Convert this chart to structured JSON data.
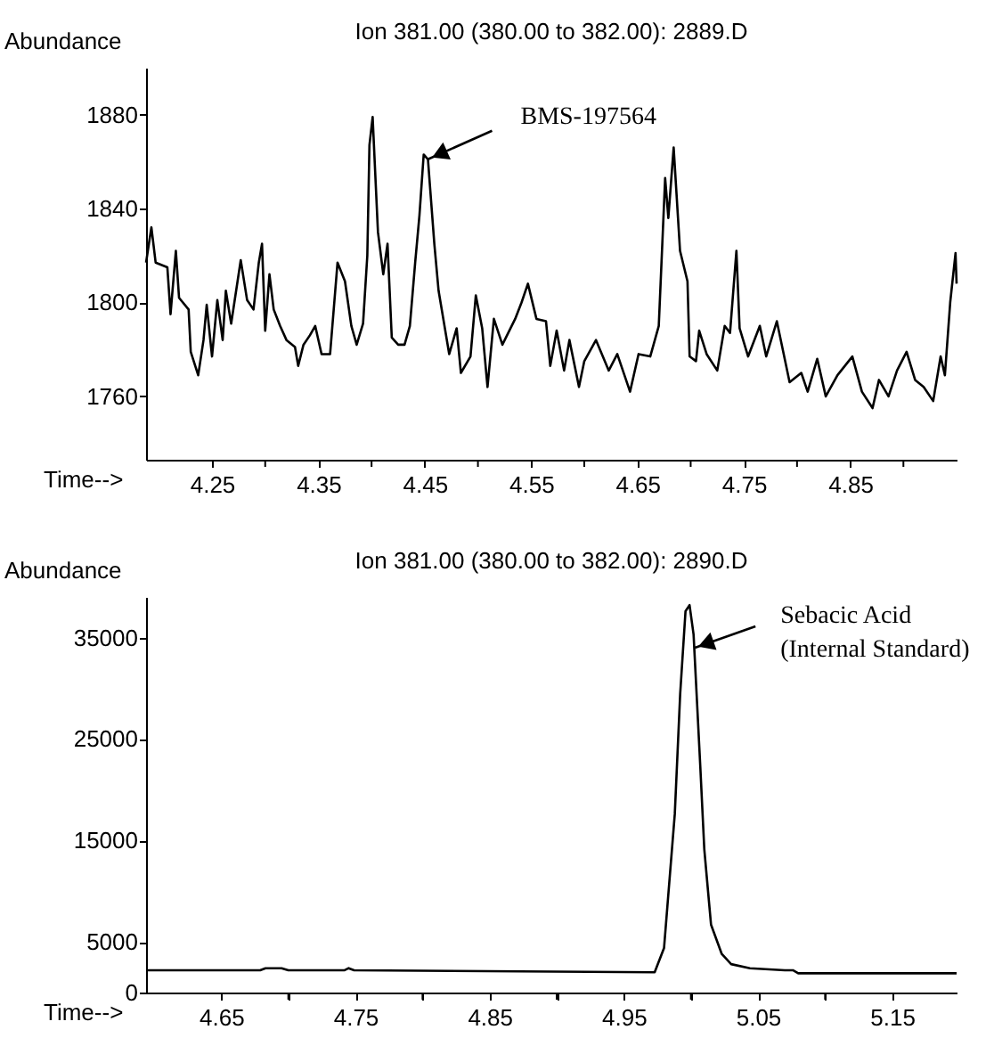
{
  "chart_data": [
    {
      "type": "line",
      "title": "Ion 381.00 (380.00 to 382.00): 2889.D",
      "xlabel": "Time-->",
      "ylabel": "Abundance",
      "xlim": [
        4.188,
        4.95
      ],
      "ylim": [
        1733,
        1900
      ],
      "xticks": [
        4.25,
        {
          "value": 4.3,
          "label": null
        },
        4.35,
        {
          "value": 4.4,
          "label": null
        },
        4.45,
        {
          "value": 4.5,
          "label": null
        },
        4.55,
        {
          "value": 4.6,
          "label": null
        },
        4.65,
        {
          "value": 4.7,
          "label": null
        },
        4.75,
        {
          "value": 4.8,
          "label": null
        },
        4.85,
        {
          "value": 4.9,
          "label": null
        }
      ],
      "yticks": [
        1760,
        1800,
        1840,
        1880
      ],
      "x": [
        4.188,
        4.193,
        4.197,
        4.208,
        4.211,
        4.216,
        4.219,
        4.228,
        4.23,
        4.237,
        4.242,
        4.245,
        4.25,
        4.255,
        4.26,
        4.263,
        4.268,
        4.277,
        4.283,
        4.289,
        4.294,
        4.297,
        4.3,
        4.304,
        4.308,
        4.314,
        4.32,
        4.328,
        4.331,
        4.336,
        4.342,
        4.347,
        4.353,
        4.361,
        4.368,
        4.375,
        4.381,
        4.386,
        4.392,
        4.396,
        4.398,
        4.401,
        4.406,
        4.411,
        4.415,
        4.419,
        4.425,
        4.431,
        4.436,
        4.441,
        4.445,
        4.449,
        4.453,
        4.459,
        4.463,
        4.473,
        4.48,
        4.484,
        4.493,
        4.498,
        4.504,
        4.509,
        4.515,
        4.523,
        4.535,
        4.541,
        4.547,
        4.555,
        4.564,
        4.568,
        4.574,
        4.581,
        4.586,
        4.595,
        4.6,
        4.611,
        4.623,
        4.631,
        4.643,
        4.651,
        4.662,
        4.67,
        4.676,
        4.679,
        4.684,
        4.69,
        4.697,
        4.699,
        4.705,
        4.708,
        4.715,
        4.725,
        4.732,
        4.737,
        4.743,
        4.746,
        4.754,
        4.765,
        4.771,
        4.781,
        4.793,
        4.804,
        4.81,
        4.819,
        4.827,
        4.838,
        4.852,
        4.861,
        4.871,
        4.877,
        4.886,
        4.894,
        4.903,
        4.911,
        4.919,
        4.928,
        4.935,
        4.939,
        4.944,
        4.949,
        4.95
      ],
      "series": [
        {
          "color": "#000000",
          "values": [
            1817,
            1832,
            1817,
            1815,
            1795,
            1822,
            1802,
            1797,
            1779,
            1769,
            1784,
            1799,
            1777,
            1801,
            1784,
            1805,
            1791,
            1818,
            1801,
            1797,
            1817,
            1825,
            1788,
            1812,
            1797,
            1790,
            1784,
            1781,
            1773,
            1782,
            1786,
            1790,
            1778,
            1778,
            1817,
            1809,
            1790,
            1782,
            1791,
            1820,
            1867,
            1879,
            1830,
            1812,
            1825,
            1785,
            1782,
            1782,
            1790,
            1817,
            1837,
            1863,
            1861,
            1825,
            1805,
            1778,
            1789,
            1770,
            1777,
            1803,
            1789,
            1764,
            1793,
            1782,
            1793,
            1800,
            1808,
            1793,
            1792,
            1773,
            1788,
            1771,
            1784,
            1764,
            1775,
            1784,
            1771,
            1778,
            1762,
            1778,
            1777,
            1790,
            1853,
            1836,
            1866,
            1822,
            1809,
            1777,
            1775,
            1788,
            1778,
            1771,
            1790,
            1787,
            1822,
            1789,
            1777,
            1790,
            1777,
            1792,
            1766,
            1770,
            1762,
            1776,
            1760,
            1769,
            1777,
            1762,
            1755,
            1767,
            1760,
            1771,
            1779,
            1767,
            1764,
            1758,
            1777,
            1769,
            1800,
            1821,
            1808
          ]
        }
      ],
      "annotations": [
        {
          "text": "BMS-197564",
          "x": 4.453,
          "y": 1861
        }
      ]
    },
    {
      "type": "line",
      "title": "Ion 381.00 (380.00 to 382.00): 2890.D",
      "xlabel": "Time-->",
      "ylabel": "Abundance",
      "xlim": [
        4.594,
        5.198
      ],
      "ylim": [
        0,
        39000
      ],
      "xticks": [
        4.65,
        {
          "value": 4.7,
          "label": null
        },
        4.75,
        {
          "value": 4.8,
          "label": null
        },
        4.85,
        {
          "value": 4.9,
          "label": null
        },
        4.95,
        {
          "value": 5.0,
          "label": null
        },
        5.05,
        {
          "value": 5.1,
          "label": null
        },
        5.15
      ],
      "yticks": [
        0,
        5000,
        15000,
        25000,
        35000
      ],
      "x": [
        4.594,
        4.679,
        4.683,
        4.695,
        4.7,
        4.742,
        4.745,
        4.749,
        4.973,
        4.98,
        4.988,
        4.992,
        4.996,
        4.999,
        5.002,
        5.007,
        5.01,
        5.015,
        5.023,
        5.03,
        5.044,
        5.07,
        5.076,
        5.08,
        5.198
      ],
      "series": [
        {
          "color": "#000000",
          "values": [
            2200,
            2200,
            2400,
            2400,
            2200,
            2200,
            2400,
            2200,
            2000,
            4400,
            17600,
            29400,
            37600,
            38200,
            35300,
            22300,
            14100,
            6700,
            3800,
            2800,
            2400,
            2200,
            2200,
            1900,
            1900
          ]
        }
      ],
      "annotations": [
        {
          "text": "Sebacic Acid\n(Internal Standard)",
          "x": 5.003,
          "y": 34000
        }
      ]
    }
  ]
}
